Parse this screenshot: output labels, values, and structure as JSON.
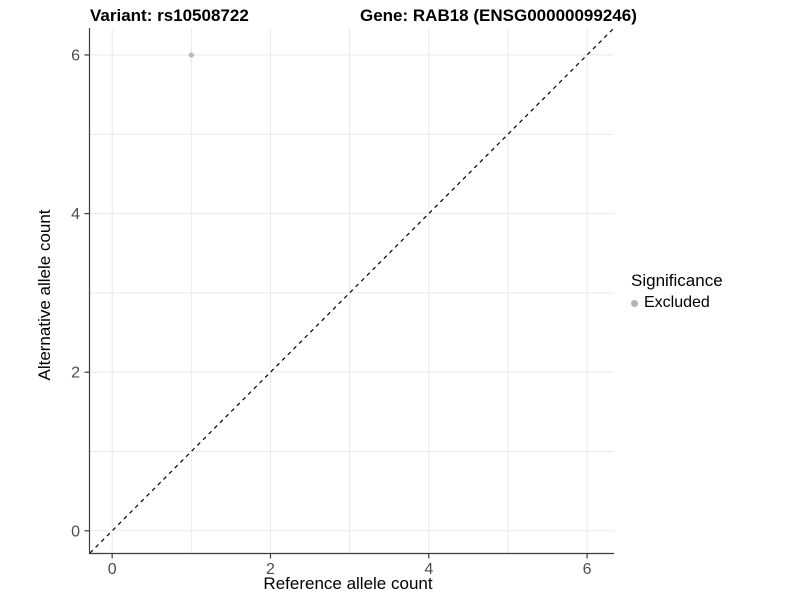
{
  "chart_data": {
    "type": "scatter",
    "titles": {
      "variant": "Variant: rs10508722",
      "gene": "Gene: RAB18 (ENSG00000099246)"
    },
    "xlabel": "Reference allele count",
    "ylabel": "Alternative allele count",
    "xlim": [
      -0.28,
      6.34
    ],
    "ylim": [
      -0.28,
      6.34
    ],
    "xticks": [
      0,
      2,
      4,
      6
    ],
    "yticks": [
      0,
      2,
      4,
      6
    ],
    "grid_values": [
      0,
      1,
      2,
      3,
      4,
      5,
      6
    ],
    "points": [
      {
        "x": 1,
        "y": 6,
        "series": "Excluded"
      }
    ],
    "identity_line": {
      "slope": 1,
      "intercept": 0,
      "style": "dashed",
      "color": "#000000"
    },
    "legend": {
      "title": "Significance",
      "position": "right",
      "items": [
        {
          "label": "Excluded",
          "color": "#b3b3b3"
        }
      ]
    },
    "colors": {
      "point": "#b9b9b9",
      "grid": "#e9e9e9",
      "axis": "#3c3c3c",
      "tick_label": "#4d4d4d"
    },
    "grid": true
  }
}
